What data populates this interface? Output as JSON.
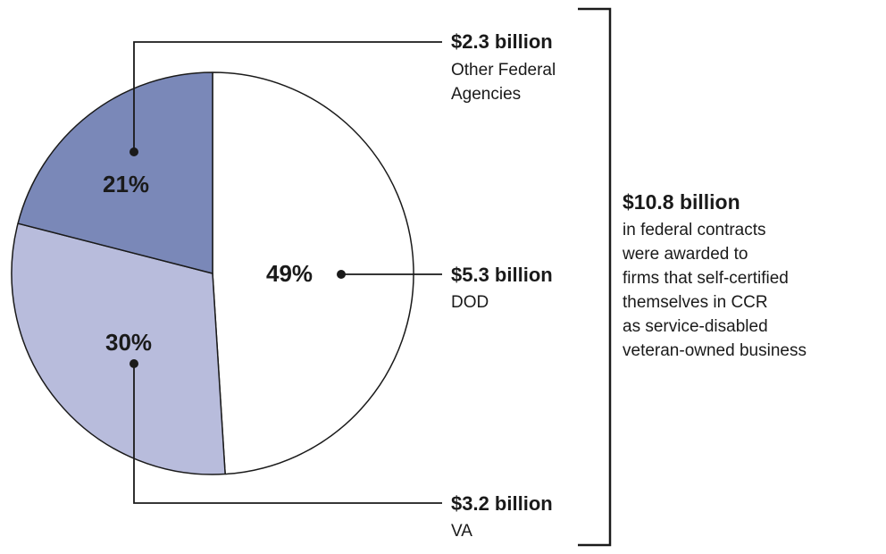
{
  "chart_data": {
    "type": "pie",
    "slices": [
      {
        "label": "DOD",
        "percent": 49,
        "percent_label": "49%",
        "amount_label": "$5.3 billion",
        "description_lines": [
          "DOD"
        ],
        "color": "#ffffff"
      },
      {
        "label": "VA",
        "percent": 30,
        "percent_label": "30%",
        "amount_label": "$3.2 billion",
        "description_lines": [
          "VA"
        ],
        "color": "#b8bcdc"
      },
      {
        "label": "Other Federal Agencies",
        "percent": 21,
        "percent_label": "21%",
        "amount_label": "$2.3 billion",
        "description_lines": [
          "Other Federal",
          "Agencies"
        ],
        "color": "#7a88b8"
      }
    ],
    "total": {
      "amount_label": "$10.8 billion",
      "lines": [
        "in federal contracts",
        "were awarded to",
        "firms that self-certified",
        "themselves in CCR",
        "as service-disabled",
        "veteran-owned business"
      ]
    }
  }
}
